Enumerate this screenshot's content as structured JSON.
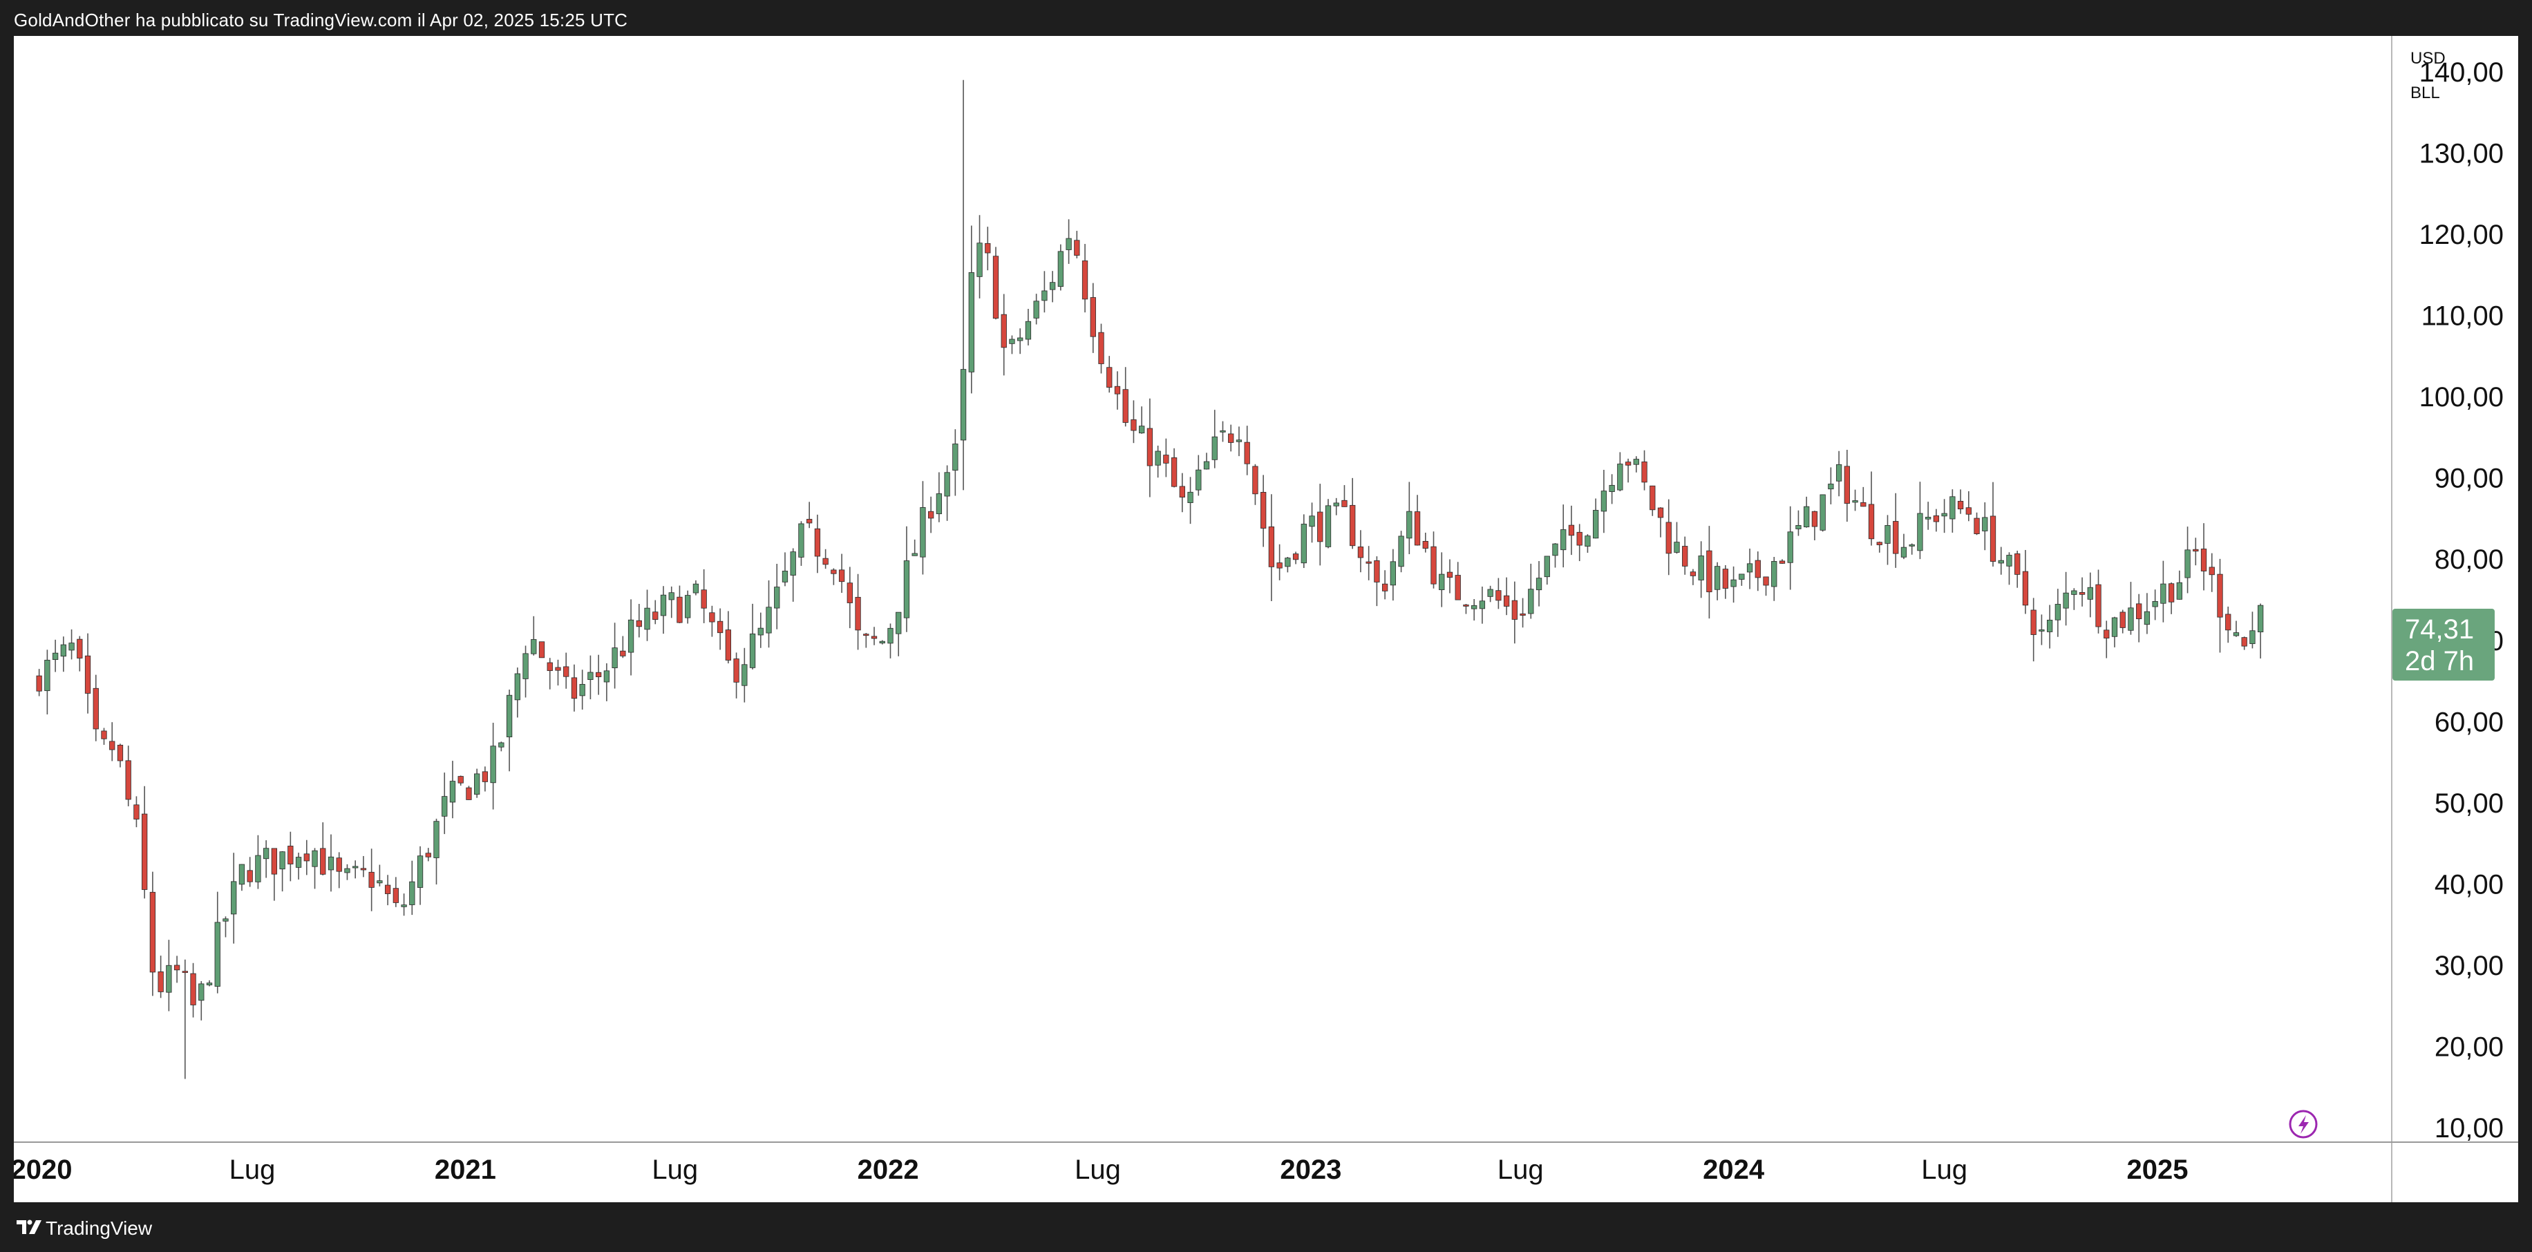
{
  "header": {
    "publish_text": "GoldAndOther ha pubblicato su TradingView.com il Apr 02, 2025 15:25 UTC"
  },
  "footer": {
    "brand": "TradingView"
  },
  "price_axis": {
    "currency": "USD",
    "symbol": "BLL",
    "last_price": "74,31",
    "countdown": "2d 7h"
  },
  "colors": {
    "up": "#5f9e74",
    "down": "#d6473d",
    "wick": "#555555",
    "last_price_bg": "#6aa57d",
    "lightning": "#9c27b0"
  },
  "chart_data": {
    "type": "candlestick",
    "interval": "weekly",
    "title": "",
    "y_ticks": [
      "10,00",
      "20,00",
      "30,00",
      "40,00",
      "50,00",
      "60,00",
      "70,00",
      "80,00",
      "90,00",
      "100,00",
      "110,00",
      "120,00",
      "130,00",
      "140,00"
    ],
    "x_ticks": [
      {
        "date": "2020-01-01",
        "label": "2020",
        "bold": true
      },
      {
        "date": "2020-07-01",
        "label": "Lug",
        "bold": false
      },
      {
        "date": "2021-01-01",
        "label": "2021",
        "bold": true
      },
      {
        "date": "2021-07-01",
        "label": "Lug",
        "bold": false
      },
      {
        "date": "2022-01-01",
        "label": "2022",
        "bold": true
      },
      {
        "date": "2022-07-01",
        "label": "Lug",
        "bold": false
      },
      {
        "date": "2023-01-01",
        "label": "2023",
        "bold": true
      },
      {
        "date": "2023-07-01",
        "label": "Lug",
        "bold": false
      },
      {
        "date": "2024-01-01",
        "label": "2024",
        "bold": true
      },
      {
        "date": "2024-07-01",
        "label": "Lug",
        "bold": false
      },
      {
        "date": "2025-01-01",
        "label": "2025",
        "bold": true
      }
    ],
    "ylim": [
      10,
      142
    ],
    "xlim": [
      "2019-12-30",
      "2025-05-26"
    ],
    "grid": false,
    "legend": "none",
    "close_path": [
      [
        "2020-01-01",
        66
      ],
      [
        "2020-01-29",
        69
      ],
      [
        "2020-02-19",
        56
      ],
      [
        "2020-03-04",
        57
      ],
      [
        "2020-03-25",
        45
      ],
      [
        "2020-04-08",
        27
      ],
      [
        "2020-04-29",
        29
      ],
      [
        "2020-05-13",
        24
      ],
      [
        "2020-06-03",
        34
      ],
      [
        "2020-06-24",
        42
      ],
      [
        "2020-07-22",
        43
      ],
      [
        "2020-08-19",
        45
      ],
      [
        "2020-09-16",
        40
      ],
      [
        "2020-10-14",
        41
      ],
      [
        "2020-11-04",
        36
      ],
      [
        "2020-12-16",
        50
      ],
      [
        "2021-01-27",
        55
      ],
      [
        "2021-02-24",
        71
      ],
      [
        "2021-03-31",
        63
      ],
      [
        "2021-04-28",
        66
      ],
      [
        "2021-05-26",
        71
      ],
      [
        "2021-06-23",
        74
      ],
      [
        "2021-07-21",
        75
      ],
      [
        "2021-08-18",
        66
      ],
      [
        "2021-09-15",
        71
      ],
      [
        "2021-10-20",
        83
      ],
      [
        "2021-11-17",
        80
      ],
      [
        "2021-12-08",
        69
      ],
      [
        "2021-12-29",
        70
      ],
      [
        "2022-02-09",
        88
      ],
      [
        "2022-03-02",
        93
      ],
      [
        "2022-03-16",
        118
      ],
      [
        "2022-03-30",
        116
      ],
      [
        "2022-04-13",
        104
      ],
      [
        "2022-04-27",
        108
      ],
      [
        "2022-05-18",
        113
      ],
      [
        "2022-06-08",
        121
      ],
      [
        "2022-06-29",
        108
      ],
      [
        "2022-07-27",
        96
      ],
      [
        "2022-08-24",
        92
      ],
      [
        "2022-09-14",
        86
      ],
      [
        "2022-10-12",
        94
      ],
      [
        "2022-11-02",
        97
      ],
      [
        "2022-11-30",
        78
      ],
      [
        "2022-12-28",
        84
      ],
      [
        "2023-02-01",
        85
      ],
      [
        "2023-03-01",
        76
      ],
      [
        "2023-03-29",
        85
      ],
      [
        "2023-04-26",
        76
      ],
      [
        "2023-05-31",
        76
      ],
      [
        "2023-06-28",
        73
      ],
      [
        "2023-07-26",
        80
      ],
      [
        "2023-08-30",
        85
      ],
      [
        "2023-09-27",
        94
      ],
      [
        "2023-10-18",
        88
      ],
      [
        "2023-11-08",
        82
      ],
      [
        "2023-12-06",
        78
      ],
      [
        "2024-01-03",
        76
      ],
      [
        "2024-02-07",
        80
      ],
      [
        "2024-03-06",
        85
      ],
      [
        "2024-04-03",
        90
      ],
      [
        "2024-04-24",
        85
      ],
      [
        "2024-05-29",
        82
      ],
      [
        "2024-06-26",
        86
      ],
      [
        "2024-07-24",
        86
      ],
      [
        "2024-08-28",
        78
      ],
      [
        "2024-09-25",
        70
      ],
      [
        "2024-10-23",
        78
      ],
      [
        "2024-11-20",
        72
      ],
      [
        "2024-12-18",
        74
      ],
      [
        "2025-01-22",
        78
      ],
      [
        "2025-02-05",
        81
      ],
      [
        "2025-02-26",
        74
      ],
      [
        "2025-03-19",
        69
      ],
      [
        "2025-04-02",
        74.31
      ]
    ],
    "peaks": [
      {
        "date": "2022-03-09",
        "high": 139
      },
      {
        "date": "2020-05-06",
        "low": 16
      }
    ]
  }
}
